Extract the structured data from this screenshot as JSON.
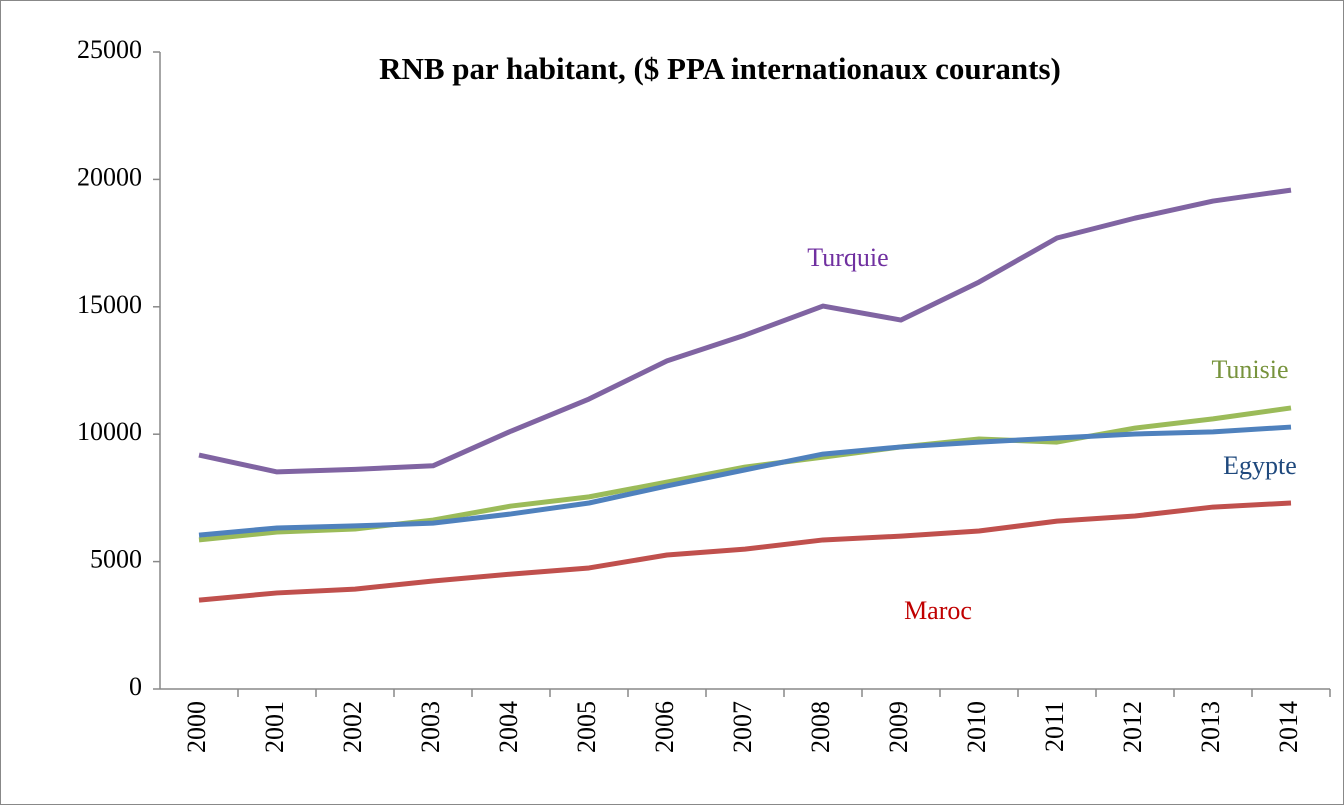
{
  "chart_data": {
    "type": "line",
    "title": "RNB par habitant, ($ PPA internationaux courants)",
    "categories": [
      "2000",
      "2001",
      "2002",
      "2003",
      "2004",
      "2005",
      "2006",
      "2007",
      "2008",
      "2009",
      "2010",
      "2011",
      "2012",
      "2013",
      "2014"
    ],
    "series": [
      {
        "name": "Turquie",
        "color": "#8064a2",
        "values": [
          9180,
          8520,
          8620,
          8760,
          10120,
          11380,
          12880,
          13890,
          15030,
          14480,
          15970,
          17700,
          18480,
          19150,
          19580
        ]
      },
      {
        "name": "Tunisie",
        "color": "#9bbb59",
        "values": [
          5850,
          6160,
          6280,
          6630,
          7180,
          7540,
          8120,
          8710,
          9100,
          9500,
          9810,
          9690,
          10240,
          10600,
          11030
        ]
      },
      {
        "name": "Egypte",
        "color": "#4f81bd",
        "values": [
          6040,
          6320,
          6400,
          6510,
          6870,
          7300,
          7970,
          8600,
          9220,
          9500,
          9690,
          9850,
          10010,
          10090,
          10280
        ]
      },
      {
        "name": "Maroc",
        "color": "#c0504d",
        "values": [
          3490,
          3770,
          3920,
          4240,
          4510,
          4750,
          5260,
          5490,
          5850,
          6000,
          6200,
          6590,
          6790,
          7140,
          7300
        ]
      }
    ],
    "ylim": [
      0,
      25000
    ],
    "yticks": [
      0,
      5000,
      10000,
      15000,
      20000,
      25000
    ]
  }
}
